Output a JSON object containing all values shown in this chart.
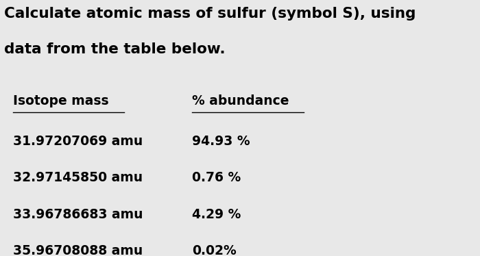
{
  "title_line1": "Calculate atomic mass of sulfur (symbol S), using",
  "title_line2": "data from the table below.",
  "col1_header": "Isotope mass",
  "col2_header": "% abundance",
  "rows": [
    {
      "mass": "31.97207069 amu",
      "abundance": "94.93 %"
    },
    {
      "mass": "32.97145850 amu",
      "abundance": "0.76 %"
    },
    {
      "mass": "33.96786683 amu",
      "abundance": "4.29 %"
    },
    {
      "mass": "35.96708088 amu",
      "abundance": "0.02%"
    }
  ],
  "bg_color": "#e8e8e8",
  "text_color": "#000000",
  "title_fontsize": 15.5,
  "header_fontsize": 13.5,
  "data_fontsize": 13.5
}
